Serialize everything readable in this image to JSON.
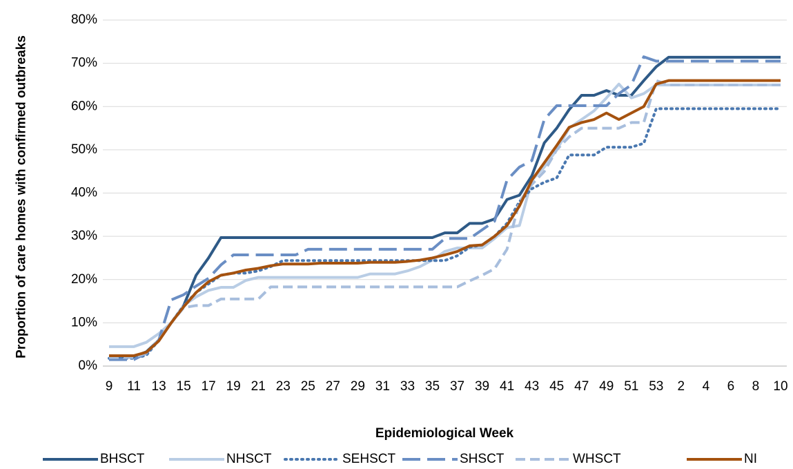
{
  "chart_data": {
    "type": "line",
    "x_label": "Epidemiological Week",
    "y_label": "Proportion of care homes with confirmed outbreaks",
    "categories": [
      "9",
      null,
      "11",
      null,
      "13",
      null,
      "15",
      null,
      "17",
      null,
      "19",
      null,
      "21",
      null,
      "23",
      null,
      "25",
      null,
      "27",
      null,
      "29",
      null,
      "31",
      null,
      "33",
      null,
      "35",
      null,
      "37",
      null,
      "39",
      null,
      "41",
      null,
      "43",
      null,
      "45",
      null,
      "47",
      null,
      "49",
      null,
      "51",
      null,
      "53",
      null,
      "2",
      null,
      "4",
      null,
      "6",
      null,
      "8",
      null,
      "10"
    ],
    "ylim": [
      0,
      80
    ],
    "yticks": [
      {
        "value": 0,
        "label": "0%"
      },
      {
        "value": 10,
        "label": "10%"
      },
      {
        "value": 20,
        "label": "20%"
      },
      {
        "value": 30,
        "label": "30%"
      },
      {
        "value": 40,
        "label": "40%"
      },
      {
        "value": 50,
        "label": "50%"
      },
      {
        "value": 60,
        "label": "60%"
      },
      {
        "value": 70,
        "label": "70%"
      },
      {
        "value": 80,
        "label": "80%"
      }
    ],
    "grid": true,
    "legend": "bottom",
    "series": [
      {
        "name": "BHSCT",
        "color": "#2e5a87",
        "style": "solid",
        "values": [
          2.2,
          2.2,
          2.2,
          3.3,
          6,
          10,
          14,
          21,
          25,
          29.7,
          29.7,
          29.7,
          29.7,
          29.7,
          29.7,
          29.7,
          29.7,
          29.7,
          29.7,
          29.7,
          29.7,
          29.7,
          29.7,
          29.7,
          29.7,
          29.7,
          29.7,
          30.8,
          30.8,
          33,
          33,
          34,
          38.5,
          39.5,
          44,
          51.6,
          55,
          59.3,
          62.6,
          62.6,
          63.7,
          62.6,
          62.6,
          66,
          69.2,
          71.4,
          71.4,
          71.4,
          71.4,
          71.4,
          71.4,
          71.4,
          71.4,
          71.4,
          71.4
        ]
      },
      {
        "name": "NHSCT",
        "color": "#b9cde5",
        "style": "solid",
        "values": [
          4.5,
          4.5,
          4.5,
          5.5,
          7.5,
          10,
          14,
          16,
          17.5,
          18.2,
          18.2,
          19.8,
          20.5,
          20.5,
          20.5,
          20.5,
          20.5,
          20.5,
          20.5,
          20.5,
          20.5,
          21.3,
          21.3,
          21.3,
          22,
          23,
          24.5,
          26.5,
          27.3,
          27.3,
          27.3,
          29.5,
          32,
          32.5,
          43,
          46,
          50,
          55,
          57,
          59,
          62,
          65.2,
          62,
          63,
          65,
          65,
          65,
          65,
          65,
          65,
          65,
          65,
          65,
          65,
          65
        ]
      },
      {
        "name": "SEHSCT",
        "color": "#4a78b0",
        "style": "dotted",
        "values": [
          1.8,
          1.8,
          1.8,
          2.5,
          6,
          10,
          14,
          17,
          19,
          21,
          21.5,
          21.5,
          22,
          23,
          24.4,
          24.4,
          24.4,
          24.4,
          24.4,
          24.4,
          24.4,
          24.4,
          24.4,
          24.4,
          24.4,
          24.4,
          24.4,
          24.4,
          25.5,
          27.5,
          28,
          30,
          33,
          38,
          41,
          42.5,
          43.5,
          48.8,
          48.8,
          48.8,
          50.6,
          50.6,
          50.6,
          51.5,
          59.5,
          59.5,
          59.5,
          59.5,
          59.5,
          59.5,
          59.5,
          59.5,
          59.5,
          59.5,
          59.5
        ]
      },
      {
        "name": "SHSCT",
        "color": "#6a8ec4",
        "style": "long-dash",
        "values": [
          1.5,
          1.5,
          1.5,
          3,
          6,
          15.3,
          16.5,
          18.5,
          20.3,
          23.4,
          25.7,
          25.7,
          25.7,
          25.7,
          25.7,
          25.7,
          27,
          27,
          27,
          27,
          27,
          27,
          27,
          27,
          27,
          27,
          27,
          29.5,
          29.5,
          29.5,
          31.5,
          33.5,
          43,
          46,
          47.5,
          57,
          60.2,
          60.2,
          60.2,
          60.2,
          60.2,
          63,
          65,
          71.5,
          70.5,
          70.5,
          70.5,
          70.5,
          70.5,
          70.5,
          70.5,
          70.5,
          70.5,
          70.5,
          70.5
        ]
      },
      {
        "name": "WHSCT",
        "color": "#a8bedd",
        "style": "dashed",
        "values": [
          2,
          2,
          2,
          3,
          6,
          10,
          13.5,
          14,
          14,
          15.5,
          15.5,
          15.5,
          15.5,
          18.3,
          18.3,
          18.3,
          18.3,
          18.3,
          18.3,
          18.3,
          18.3,
          18.3,
          18.3,
          18.3,
          18.3,
          18.3,
          18.3,
          18.3,
          18.3,
          19.7,
          21,
          22.5,
          27,
          38,
          42,
          45,
          50,
          53,
          55,
          55,
          55,
          55,
          56.3,
          56.3,
          66,
          65,
          65,
          65,
          65,
          65,
          65,
          65,
          65,
          65,
          65
        ]
      },
      {
        "name": "NI",
        "color": "#a5520f",
        "style": "solid",
        "values": [
          2.4,
          2.4,
          2.4,
          3.2,
          5.8,
          10,
          13.7,
          17,
          19.5,
          21,
          21.5,
          22.2,
          22.6,
          23.2,
          23.6,
          23.6,
          23.6,
          23.8,
          23.8,
          23.8,
          23.8,
          24,
          24,
          24,
          24.2,
          24.5,
          25,
          25.7,
          26.5,
          27.8,
          28,
          30,
          32.5,
          37,
          43,
          47,
          51,
          55.2,
          56.3,
          57,
          58.5,
          57,
          58.5,
          60,
          65.2,
          66,
          66,
          66,
          66,
          66,
          66,
          66,
          66,
          66,
          66
        ]
      }
    ]
  }
}
